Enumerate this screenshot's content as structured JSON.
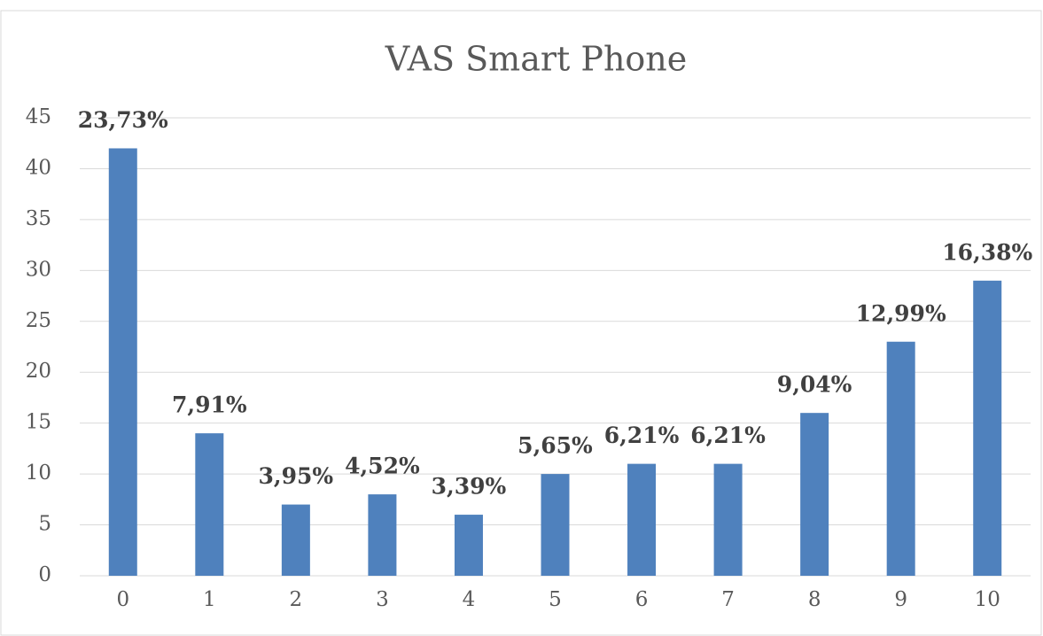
{
  "chart_data": {
    "type": "bar",
    "title": "VAS Smart Phone",
    "categories": [
      "0",
      "1",
      "2",
      "3",
      "4",
      "5",
      "6",
      "7",
      "8",
      "9",
      "10"
    ],
    "values": [
      42,
      14,
      7,
      8,
      6,
      10,
      11,
      11,
      16,
      23,
      29
    ],
    "shares": [
      23.73,
      7.91,
      3.95,
      4.52,
      3.39,
      5.65,
      6.21,
      6.21,
      9.04,
      12.99,
      16.38
    ],
    "share_labels": [
      "23,73%",
      "7,91%",
      "3,95%",
      "4,52%",
      "3,39%",
      "5,65%",
      "6,21%",
      "6,21%",
      "9,04%",
      "12,99%",
      "16,38%"
    ],
    "color": "#4f81bd",
    "ylim": [
      0,
      45
    ],
    "yticks": [
      0,
      5,
      10,
      15,
      20,
      25,
      30,
      35,
      40,
      45
    ],
    "grid": true
  }
}
